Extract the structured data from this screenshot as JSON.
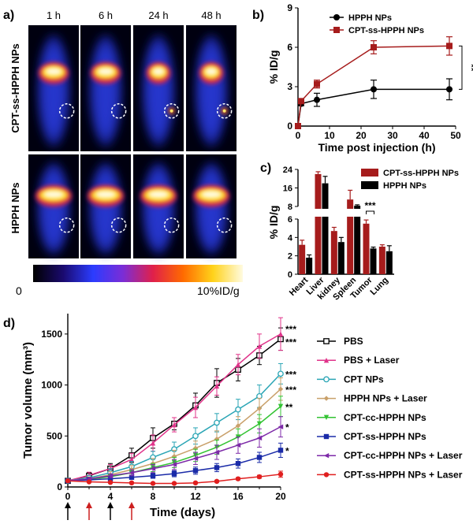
{
  "panel_a": {
    "label": "a)",
    "timepoints": [
      "1 h",
      "6 h",
      "24 h",
      "48 h"
    ],
    "row_labels": [
      "CPT-ss-HPPH NPs",
      "HPPH NPs"
    ],
    "colorbar_min": "0",
    "colorbar_max": "10%ID/g",
    "colorbar_colors": [
      "#000000",
      "#1a0a6e",
      "#2b3cff",
      "#7b2dd6",
      "#e0204a",
      "#ff6a00",
      "#ffd21a",
      "#fffbe0"
    ]
  },
  "chart_data": [
    {
      "panel": "b)",
      "type": "line",
      "xlabel": "Time post injection (h)",
      "ylabel": "% ID/g",
      "xlim": [
        0,
        50
      ],
      "ylim": [
        0,
        9
      ],
      "xticks": [
        "0",
        "10",
        "20",
        "30",
        "40",
        "50"
      ],
      "yticks": [
        "0",
        "3",
        "6",
        "9"
      ],
      "legend_position": "top-center",
      "significance": "**",
      "series": [
        {
          "name": "HPPH NPs",
          "color": "#000000",
          "marker": "circle",
          "x": [
            0,
            1,
            6,
            24,
            48
          ],
          "y": [
            0.0,
            1.7,
            2.0,
            2.8,
            2.8
          ],
          "err": [
            0,
            0.15,
            0.5,
            0.7,
            0.8
          ]
        },
        {
          "name": "CPT-ss-HPPH NPs",
          "color": "#a61c1c",
          "marker": "square",
          "x": [
            0,
            1,
            6,
            24,
            48
          ],
          "y": [
            0.0,
            1.9,
            3.2,
            6.0,
            6.1
          ],
          "err": [
            0,
            0.15,
            0.3,
            0.5,
            0.7
          ]
        }
      ]
    },
    {
      "panel": "c)",
      "type": "bar",
      "ylabel": "% ID/g",
      "categories": [
        "Heart",
        "Liver",
        "kidney",
        "Spleen",
        "Tumor",
        "Lung"
      ],
      "yticks": [
        "0",
        "2",
        "4",
        "6",
        "8",
        "16",
        "24"
      ],
      "legend_position": "top-right",
      "significance": "***",
      "series": [
        {
          "name": "CPT-ss-HPPH NPs",
          "color": "#a61c1c",
          "values": [
            3.2,
            22.0,
            4.7,
            11.0,
            5.5,
            3.0
          ],
          "err": [
            0.5,
            1.0,
            0.4,
            4.0,
            0.4,
            0.2
          ]
        },
        {
          "name": "HPPH NPs",
          "color": "#000000",
          "values": [
            1.8,
            18.0,
            3.5,
            8.3,
            2.8,
            2.5
          ],
          "err": [
            0.3,
            3.0,
            0.5,
            0.4,
            0.15,
            0.6
          ]
        }
      ]
    },
    {
      "panel": "d)",
      "type": "line",
      "xlabel": "Time (days)",
      "ylabel": "Tumor volume (mm³)",
      "xlim": [
        0,
        20
      ],
      "ylim": [
        0,
        1700
      ],
      "xticks": [
        "0",
        "4",
        "8",
        "12",
        "16",
        "20"
      ],
      "yticks": [
        "0",
        "500",
        "1000",
        "1500"
      ],
      "legend_position": "right",
      "x": [
        0,
        2,
        4,
        6,
        8,
        10,
        12,
        14,
        16,
        18,
        20
      ],
      "series": [
        {
          "name": "PBS",
          "color": "#000000",
          "marker": "open-square",
          "sig": "***",
          "y": [
            60,
            110,
            180,
            310,
            480,
            620,
            800,
            1020,
            1150,
            1290,
            1450
          ],
          "err": [
            10,
            30,
            50,
            70,
            100,
            60,
            120,
            140,
            110,
            90,
            110
          ]
        },
        {
          "name": "PBS + Laser",
          "color": "#e0338a",
          "marker": "triangle",
          "sig": "***",
          "y": [
            60,
            115,
            180,
            270,
            430,
            610,
            780,
            990,
            1200,
            1380,
            1500
          ],
          "err": [
            10,
            30,
            40,
            60,
            80,
            70,
            100,
            90,
            100,
            120,
            160
          ]
        },
        {
          "name": "CPT NPs",
          "color": "#2aa5b5",
          "marker": "open-circle",
          "sig": "***",
          "y": [
            60,
            90,
            140,
            200,
            290,
            370,
            500,
            630,
            760,
            890,
            1110
          ],
          "err": [
            10,
            20,
            40,
            50,
            60,
            70,
            80,
            90,
            100,
            110,
            100
          ]
        },
        {
          "name": "HPPH  NPs + Laser",
          "color": "#c9a06a",
          "marker": "diamond",
          "sig": "***",
          "y": [
            60,
            80,
            120,
            170,
            230,
            300,
            380,
            470,
            600,
            770,
            960
          ],
          "err": [
            10,
            20,
            30,
            40,
            50,
            60,
            70,
            80,
            90,
            100,
            110
          ]
        },
        {
          "name": "CPT-cc-HPPH NPs",
          "color": "#33c333",
          "marker": "down-triangle",
          "sig": "**",
          "y": [
            60,
            75,
            100,
            140,
            190,
            240,
            310,
            390,
            490,
            620,
            790
          ],
          "err": [
            10,
            15,
            20,
            30,
            40,
            50,
            60,
            70,
            80,
            90,
            100
          ]
        },
        {
          "name": "CPT-ss-HPPH NPs",
          "color": "#1a2ba8",
          "marker": "square",
          "sig": "*",
          "y": [
            60,
            70,
            80,
            95,
            110,
            130,
            160,
            190,
            230,
            290,
            360
          ],
          "err": [
            8,
            10,
            15,
            20,
            25,
            30,
            35,
            40,
            45,
            50,
            70
          ]
        },
        {
          "name": "CPT-cc-HPPH NPs + Laser",
          "color": "#7d2aa8",
          "marker": "left-triangle",
          "sig": "*",
          "y": [
            60,
            80,
            110,
            140,
            180,
            220,
            280,
            340,
            410,
            480,
            590
          ],
          "err": [
            10,
            15,
            20,
            30,
            40,
            50,
            60,
            70,
            80,
            90,
            100
          ]
        },
        {
          "name": "CPT-ss-HPPH NPs + Laser",
          "color": "#e01f1f",
          "marker": "circle",
          "sig": "",
          "y": [
            60,
            50,
            45,
            40,
            35,
            35,
            40,
            55,
            80,
            100,
            125
          ],
          "err": [
            8,
            8,
            8,
            8,
            8,
            8,
            8,
            10,
            12,
            15,
            30
          ]
        }
      ],
      "black_arrow_days": [
        0,
        4
      ],
      "red_arrow_days": [
        2,
        6
      ],
      "arrow_colors": {
        "black": "#000000",
        "red": "#cc1f1f"
      }
    }
  ]
}
